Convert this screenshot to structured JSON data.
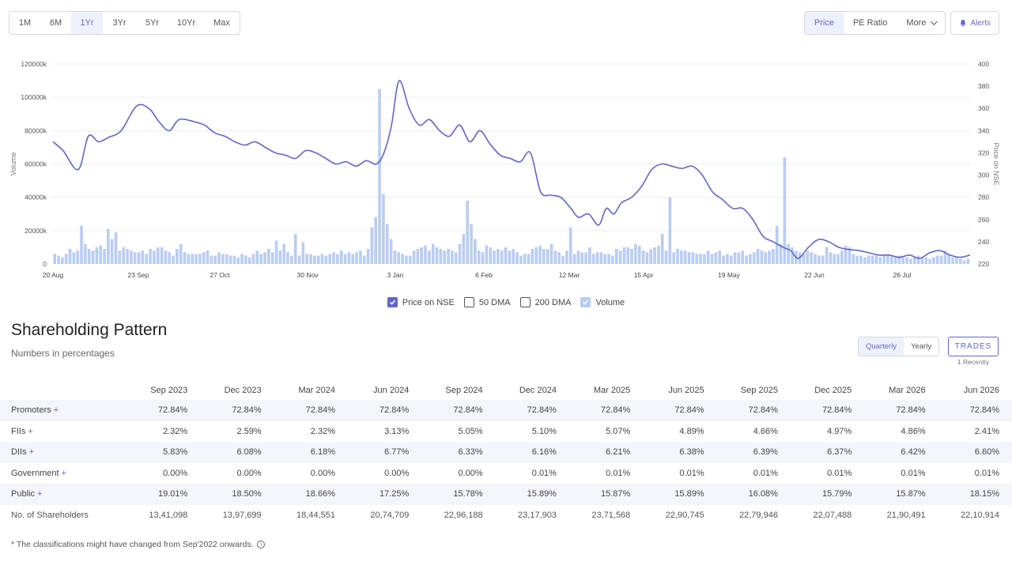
{
  "ranges": [
    "1M",
    "6M",
    "1Yr",
    "3Yr",
    "5Yr",
    "10Yr",
    "Max"
  ],
  "active_range": "1Yr",
  "views": [
    "Price",
    "PE Ratio",
    "More"
  ],
  "active_view": "Price",
  "alerts_label": "Alerts",
  "chart_data": {
    "type": "line",
    "x_ticks": [
      "20 Aug",
      "23 Sep",
      "27 Oct",
      "30 Nov",
      "3 Jan",
      "6 Feb",
      "12 Mar",
      "15 Apr",
      "19 May",
      "22 Jun",
      "26 Jul"
    ],
    "ylabel_left": "Volume",
    "ylabel_right": "Price on NSE",
    "left_ticks": [
      "0",
      "20000k",
      "40000k",
      "60000k",
      "80000k",
      "100000k",
      "120000k"
    ],
    "left_range": [
      0,
      120000
    ],
    "right_ticks": [
      "220",
      "240",
      "260",
      "280",
      "300",
      "320",
      "340",
      "360",
      "380",
      "400"
    ],
    "right_range": [
      220,
      400
    ],
    "price_days": [
      0,
      4,
      10,
      14,
      18,
      22,
      27,
      33,
      38,
      42,
      46,
      50,
      56,
      60,
      64,
      68,
      72,
      76,
      80,
      84,
      88,
      92,
      96,
      100,
      104,
      108,
      112,
      116,
      120,
      124,
      128,
      131,
      134,
      137,
      141,
      145,
      149,
      153,
      157,
      161,
      165,
      169,
      173,
      177,
      181,
      185,
      189,
      193,
      197,
      201,
      205,
      208,
      212,
      216,
      219,
      222,
      225,
      229,
      233,
      237,
      241,
      245,
      249,
      253,
      257,
      261,
      265,
      269,
      273,
      277,
      281,
      285,
      289,
      292,
      295,
      299,
      303,
      307,
      311,
      315,
      319,
      323,
      327,
      331,
      335,
      339,
      343,
      347,
      351,
      355,
      359,
      363
    ],
    "price": [
      330,
      322,
      305,
      335,
      330,
      334,
      340,
      362,
      360,
      348,
      340,
      350,
      348,
      345,
      338,
      335,
      330,
      327,
      330,
      325,
      320,
      318,
      315,
      322,
      320,
      315,
      310,
      312,
      308,
      313,
      310,
      320,
      345,
      385,
      360,
      345,
      350,
      340,
      335,
      345,
      330,
      340,
      328,
      318,
      315,
      312,
      320,
      285,
      282,
      280,
      270,
      262,
      265,
      255,
      270,
      265,
      275,
      280,
      290,
      305,
      310,
      308,
      306,
      308,
      300,
      285,
      278,
      270,
      270,
      260,
      245,
      240,
      235,
      232,
      225,
      235,
      242,
      240,
      235,
      233,
      232,
      230,
      228,
      228,
      226,
      228,
      225,
      230,
      232,
      228,
      226,
      228
    ],
    "volume": [
      6,
      5,
      4,
      6,
      9,
      7,
      8,
      23,
      12,
      9,
      8,
      10,
      11,
      9,
      21,
      15,
      19,
      8,
      10,
      9,
      8,
      7,
      7,
      8,
      6,
      9,
      8,
      10,
      10,
      8,
      7,
      5,
      9,
      12,
      7,
      6,
      6,
      6,
      6,
      7,
      8,
      5,
      5,
      7,
      6,
      6,
      5,
      5,
      4,
      6,
      5,
      4,
      6,
      8,
      6,
      7,
      9,
      7,
      14,
      8,
      12,
      7,
      5,
      18,
      5,
      13,
      6,
      6,
      5,
      5,
      6,
      5,
      6,
      7,
      6,
      8,
      6,
      7,
      6,
      7,
      8,
      5,
      9,
      22,
      28,
      105,
      42,
      24,
      15,
      8,
      7,
      6,
      5,
      5,
      8,
      9,
      10,
      11,
      8,
      12,
      10,
      9,
      8,
      9,
      8,
      7,
      12,
      18,
      38,
      24,
      15,
      8,
      7,
      11,
      10,
      8,
      9,
      8,
      10,
      8,
      9,
      7,
      5,
      6,
      6,
      9,
      10,
      11,
      9,
      9,
      12,
      8,
      7,
      5,
      8,
      22,
      6,
      8,
      7,
      7,
      10,
      6,
      7,
      7,
      6,
      6,
      5,
      9,
      8,
      10,
      10,
      9,
      12,
      11,
      8,
      7,
      9,
      10,
      11,
      18,
      8,
      40,
      7,
      9,
      8,
      8,
      7,
      7,
      6,
      6,
      6,
      8,
      6,
      7,
      8,
      5,
      6,
      5,
      7,
      7,
      8,
      5,
      6,
      7,
      9,
      8,
      7,
      8,
      9,
      23,
      12,
      64,
      12,
      10,
      8,
      7,
      6,
      8,
      7,
      6,
      5,
      5,
      10,
      7,
      6,
      6,
      8,
      11,
      10,
      6,
      5,
      5,
      4,
      5,
      5,
      5,
      4,
      5,
      6,
      5,
      4,
      5,
      4,
      4,
      3,
      4,
      5,
      4,
      4,
      3,
      4,
      5,
      5,
      8,
      6,
      4,
      4,
      3,
      2,
      3
    ],
    "series": [
      {
        "name": "Price on NSE",
        "color": "#6266c7",
        "checked": true
      },
      {
        "name": "50 DMA",
        "checked": false
      },
      {
        "name": "200 DMA",
        "checked": false
      },
      {
        "name": "Volume",
        "color": "#b9ccf2",
        "checked": true
      }
    ]
  },
  "shareholding": {
    "title": "Shareholding Pattern",
    "subtitle": "Numbers in percentages",
    "periods": [
      "Quarterly",
      "Yearly"
    ],
    "active_period": "Quarterly",
    "trades_label": "TRADES",
    "trades_note": "1 Recently",
    "columns": [
      "Sep 2023",
      "Dec 2023",
      "Mar 2024",
      "Jun 2024",
      "Sep 2024",
      "Dec 2024",
      "Mar 2025",
      "Jun 2025",
      "Sep 2025",
      "Dec 2025",
      "Mar 2026",
      "Jun 2026"
    ],
    "rows": [
      {
        "label": "Promoters",
        "plus": "+",
        "values": [
          "72.84%",
          "72.84%",
          "72.84%",
          "72.84%",
          "72.84%",
          "72.84%",
          "72.84%",
          "72.84%",
          "72.84%",
          "72.84%",
          "72.84%",
          "72.84%"
        ]
      },
      {
        "label": "FIIs",
        "plus": "+",
        "values": [
          "2.32%",
          "2.59%",
          "2.32%",
          "3.13%",
          "5.05%",
          "5.10%",
          "5.07%",
          "4.89%",
          "4.66%",
          "4.97%",
          "4.86%",
          "2.41%"
        ]
      },
      {
        "label": "DIIs",
        "plus": "+",
        "values": [
          "5.83%",
          "6.08%",
          "6.18%",
          "6.77%",
          "6.33%",
          "6.16%",
          "6.21%",
          "6.38%",
          "6.39%",
          "6.37%",
          "6.42%",
          "6.60%"
        ]
      },
      {
        "label": "Government",
        "plus": "+",
        "values": [
          "0.00%",
          "0.00%",
          "0.00%",
          "0.00%",
          "0.00%",
          "0.01%",
          "0.01%",
          "0.01%",
          "0.01%",
          "0.01%",
          "0.01%",
          "0.01%"
        ]
      },
      {
        "label": "Public",
        "plus": "+",
        "values": [
          "19.01%",
          "18.50%",
          "18.66%",
          "17.25%",
          "15.78%",
          "15.89%",
          "15.87%",
          "15.89%",
          "16.08%",
          "15.79%",
          "15.87%",
          "18.15%"
        ]
      },
      {
        "label": "No. of Shareholders",
        "plus": "",
        "values": [
          "13,41,098",
          "13,97,699",
          "18,44,551",
          "20,74,709",
          "22,96,188",
          "23,17,903",
          "23,71,568",
          "22,90,745",
          "22,79,946",
          "22,07,488",
          "21,90,491",
          "22,10,914"
        ]
      }
    ],
    "footnote": "* The classifications might have changed from Sep'2022 onwards."
  }
}
